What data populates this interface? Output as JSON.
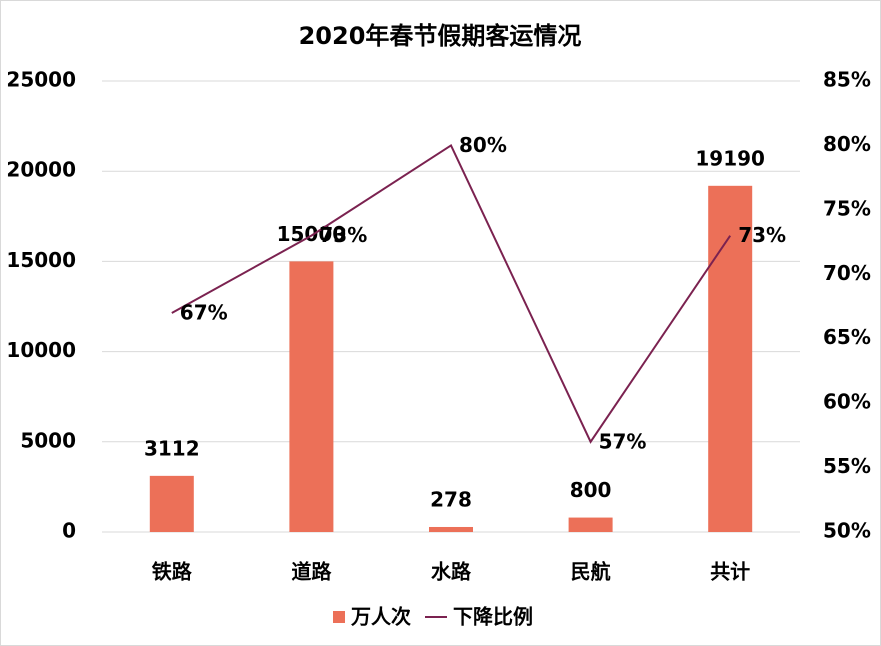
{
  "chart_data": {
    "type": "bar-line",
    "title": "2020年春节假期客运情况",
    "categories": [
      "铁路",
      "道路",
      "水路",
      "民航",
      "共计"
    ],
    "series": [
      {
        "name": "万人次",
        "type": "bar",
        "color": "#ec7058",
        "values": [
          3112,
          15000,
          278,
          800,
          19190
        ]
      },
      {
        "name": "下降比例",
        "type": "line",
        "axis": "y2",
        "color": "#7b2250",
        "values": [
          67,
          73,
          80,
          57,
          73
        ],
        "value_labels": [
          "67%",
          "73%",
          "80%",
          "57%",
          "73%"
        ]
      }
    ],
    "ylim": [
      0,
      25000
    ],
    "yticks": [
      0,
      5000,
      10000,
      15000,
      20000,
      25000
    ],
    "y2lim": [
      50,
      85
    ],
    "y2ticks": [
      {
        "value": 50,
        "label": "50%"
      },
      {
        "value": 55,
        "label": "55%"
      },
      {
        "value": 60,
        "label": "60%"
      },
      {
        "value": 65,
        "label": "65%"
      },
      {
        "value": 70,
        "label": "70%"
      },
      {
        "value": 75,
        "label": "75%"
      },
      {
        "value": 80,
        "label": "80%"
      },
      {
        "value": 85,
        "label": "85%"
      }
    ],
    "grid": true,
    "legend": "bottom"
  }
}
